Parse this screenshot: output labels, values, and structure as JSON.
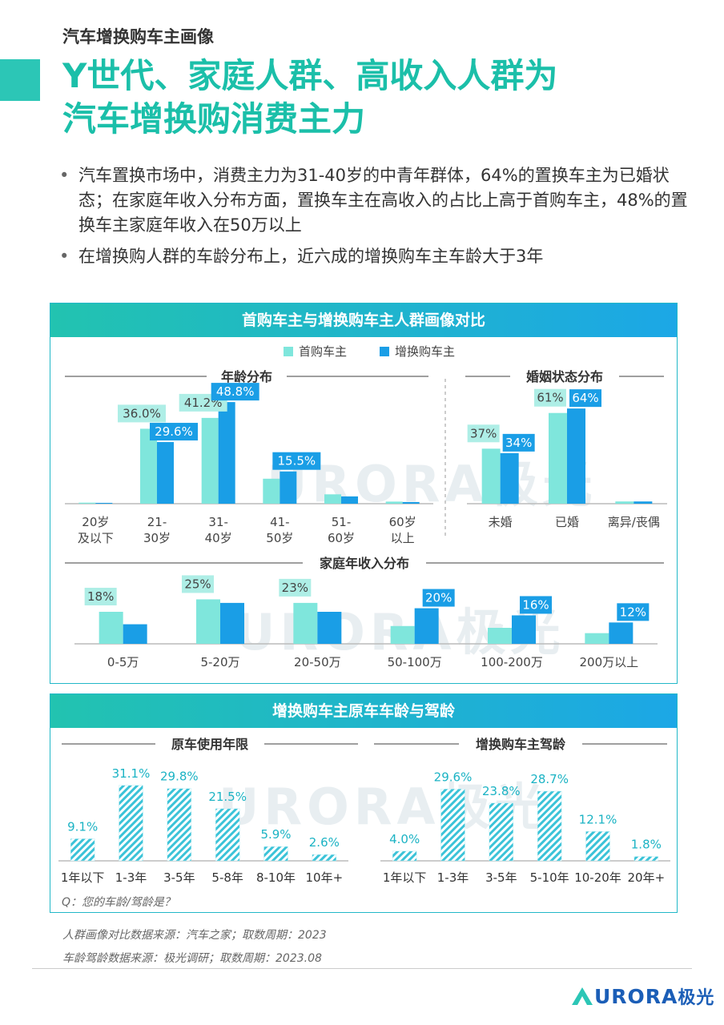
{
  "header": {
    "kicker": "汽车增换购车主画像",
    "title_line1": "Y世代、家庭人群、高收入人群为",
    "title_line2": "汽车增换购消费主力"
  },
  "bullets": [
    "汽车置换市场中，消费主力为31-40岁的中青年群体，64%的置换车主为已婚状态；在家庭年收入分布方面，置换车主在高收入的占比上高于首购车主，48%的置换车主家庭年收入在50万以上",
    "在增换购人群的车龄分布上，近六成的增换购车主车龄大于3年"
  ],
  "panel1": {
    "title": "首购车主与增换购车主人群画像对比"
  },
  "panel2": {
    "title": "增换购车主原车车龄与驾龄",
    "question": "Q：您的车龄/驾龄是？"
  },
  "footnotes": {
    "line1": "人群画像对比数据来源：汽车之家；取数周期：2023",
    "line2": "车龄驾龄数据来源：极光调研；取数周期：2023.08"
  },
  "brand": {
    "name": "URORA",
    "cn": "极光"
  },
  "watermark": "URORA极光",
  "colors": {
    "first": "#7fe6dc",
    "replace": "#1a9ee6",
    "hatch": "#3bc3d8",
    "accent": "#1bbfa9"
  },
  "chart_data": [
    {
      "type": "bar",
      "title": "年龄分布",
      "categories": [
        "20岁及以下",
        "21-30岁",
        "31-40岁",
        "41-50岁",
        "51-60岁",
        "60岁以上"
      ],
      "series": [
        {
          "name": "首购车主",
          "values": [
            0.5,
            36.0,
            41.2,
            12.0,
            4.5,
            1.0
          ],
          "labels": [
            "",
            "36.0%",
            "41.2%",
            "",
            "",
            ""
          ]
        },
        {
          "name": "增换购车主",
          "values": [
            0.4,
            29.6,
            48.8,
            15.5,
            3.5,
            0.8
          ],
          "labels": [
            "",
            "29.6%",
            "48.8%",
            "15.5%",
            "",
            ""
          ]
        }
      ],
      "ylim": [
        0,
        50
      ]
    },
    {
      "type": "bar",
      "title": "婚姻状态分布",
      "categories": [
        "未婚",
        "已婚",
        "离异/丧偶"
      ],
      "series": [
        {
          "name": "首购车主",
          "values": [
            37,
            61,
            1.5
          ],
          "labels": [
            "37%",
            "61%",
            ""
          ]
        },
        {
          "name": "增换购车主",
          "values": [
            34,
            64,
            1.5
          ],
          "labels": [
            "34%",
            "64%",
            ""
          ]
        }
      ],
      "ylim": [
        0,
        70
      ]
    },
    {
      "type": "bar",
      "title": "家庭年收入分布",
      "categories": [
        "0-5万",
        "5-20万",
        "20-50万",
        "50-100万",
        "100-200万",
        "200万以上"
      ],
      "series": [
        {
          "name": "首购车主",
          "values": [
            18,
            25,
            23,
            10,
            9,
            6
          ],
          "labels": [
            "18%",
            "25%",
            "23%",
            "",
            "",
            ""
          ]
        },
        {
          "name": "增换购车主",
          "values": [
            11,
            23,
            18,
            20,
            16,
            12
          ],
          "labels": [
            "",
            "",
            "",
            "20%",
            "16%",
            "12%"
          ]
        }
      ],
      "ylim": [
        0,
        27
      ]
    },
    {
      "type": "bar",
      "title": "原车使用年限",
      "categories": [
        "1年以下",
        "1-3年",
        "3-5年",
        "5-8年",
        "8-10年",
        "10年+"
      ],
      "values": [
        9.1,
        31.1,
        29.8,
        21.5,
        5.9,
        2.6
      ],
      "labels": [
        "9.1%",
        "31.1%",
        "29.8%",
        "21.5%",
        "5.9%",
        "2.6%"
      ],
      "ylim": [
        0,
        33
      ]
    },
    {
      "type": "bar",
      "title": "增换购车主驾龄",
      "categories": [
        "1年以下",
        "1-3年",
        "3-5年",
        "5-10年",
        "10-20年",
        "20年+"
      ],
      "values": [
        4.0,
        29.6,
        23.8,
        28.7,
        12.1,
        1.8
      ],
      "labels": [
        "4.0%",
        "29.6%",
        "23.8%",
        "28.7%",
        "12.1%",
        "1.8%"
      ],
      "ylim": [
        0,
        33
      ]
    }
  ]
}
